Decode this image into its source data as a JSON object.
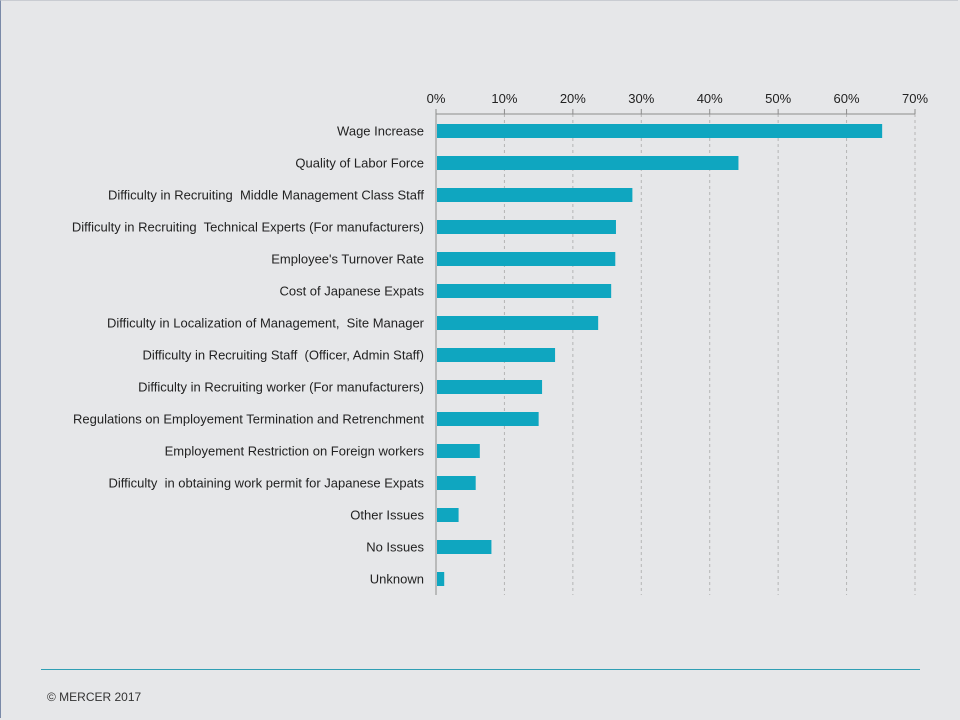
{
  "chart_data": {
    "type": "bar",
    "orientation": "horizontal",
    "categories": [
      "Wage Increase",
      "Quality of Labor Force",
      "Difficulty in Recruiting  Middle Management Class Staff",
      "Difficulty in Recruiting  Technical Experts (For manufacturers)",
      "Employee's Turnover Rate",
      "Cost of Japanese Expats",
      "Difficulty in Localization of Management,  Site Manager",
      "Difficulty in Recruiting Staff  (Officer, Admin Staff)",
      "Difficulty in Recruiting worker (For manufacturers)",
      "Regulations on Employement Termination and Retrenchment",
      "Employement Restriction on Foreign workers",
      "Difficulty  in obtaining work permit for Japanese Expats",
      "Other Issues",
      "No Issues",
      "Unknown"
    ],
    "values": [
      65.2,
      44.2,
      28.7,
      26.3,
      26.2,
      25.6,
      23.7,
      17.4,
      15.5,
      15.0,
      6.4,
      5.8,
      3.3,
      8.1,
      1.2
    ],
    "xlim": [
      0,
      70
    ],
    "xticks": [
      0,
      10,
      20,
      30,
      40,
      50,
      60,
      70
    ],
    "xtick_labels": [
      "0%",
      "10%",
      "20%",
      "30%",
      "40%",
      "50%",
      "60%",
      "70%"
    ],
    "x_axis_position": "top",
    "grid": "vertical dashed",
    "title": "",
    "xlabel": "",
    "ylabel": ""
  },
  "colors": {
    "bar": "#0fa6c0",
    "background": "#e6e7e9",
    "grid": "#b5b5b5",
    "footer_rule": "#2f9fb4"
  },
  "footer": {
    "copyright": "© MERCER 2017"
  }
}
